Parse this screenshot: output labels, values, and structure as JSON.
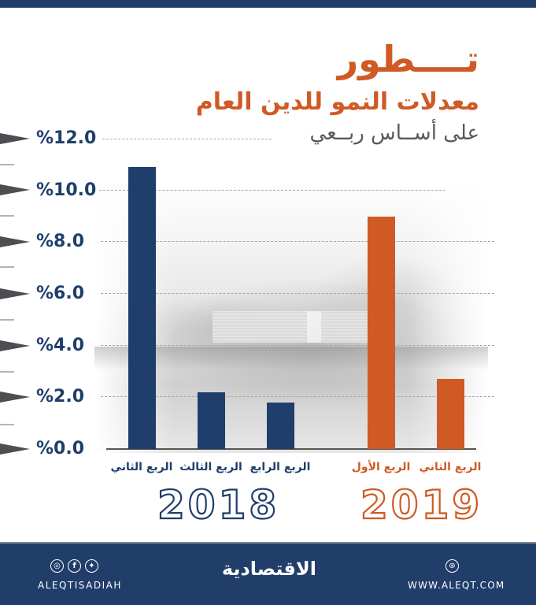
{
  "title": {
    "main": "تــــطور",
    "subtitle": "معدلات النمو للدين العام",
    "basis": "على أســاس ربــعي"
  },
  "colors": {
    "navy": "#1f3e6b",
    "orange": "#cf5a24",
    "gray_text": "#595959",
    "footer_bg": "#213e6a"
  },
  "y_axis": {
    "ticks": [
      "%12.0",
      "%10.0",
      "%8.0",
      "%6.0",
      "%4.0",
      "%2.0",
      "%0.0"
    ]
  },
  "categories": {
    "y2018": [
      "الربع الثاني",
      "الربع الثالث",
      "الربع الرابع"
    ],
    "y2019": [
      "الربع الأول",
      "الربع الثاني"
    ]
  },
  "years": {
    "y2018": "2018",
    "y2019": "2019"
  },
  "chart_data": {
    "type": "bar",
    "title": "تطور معدلات النمو للدين العام على أساس ربعي",
    "xlabel": "",
    "ylabel": "",
    "ylim": [
      0,
      12
    ],
    "y_ticks": [
      0,
      2,
      4,
      6,
      8,
      10,
      12
    ],
    "y_tick_format": "%N.0",
    "grid": "dashed horizontal",
    "categories": [
      "2018 الربع الثاني",
      "2018 الربع الثالث",
      "2018 الربع الرابع",
      "2019 الربع الأول",
      "2019 الربع الثاني"
    ],
    "series": [
      {
        "name": "2018",
        "color": "#1f3e6b",
        "categories": [
          "الربع الثاني",
          "الربع الثالث",
          "الربع الرابع"
        ],
        "values": [
          10.9,
          2.2,
          1.8
        ]
      },
      {
        "name": "2019",
        "color": "#cf5a24",
        "categories": [
          "الربع الأول",
          "الربع الثاني"
        ],
        "values": [
          9.0,
          2.7
        ]
      }
    ]
  },
  "footer": {
    "social_icons": [
      "instagram-icon",
      "facebook-icon",
      "twitter-icon"
    ],
    "handle": "ALEQTISADIAH",
    "brand": "الاقتصادية",
    "website": "WWW.ALEQT.COM"
  }
}
